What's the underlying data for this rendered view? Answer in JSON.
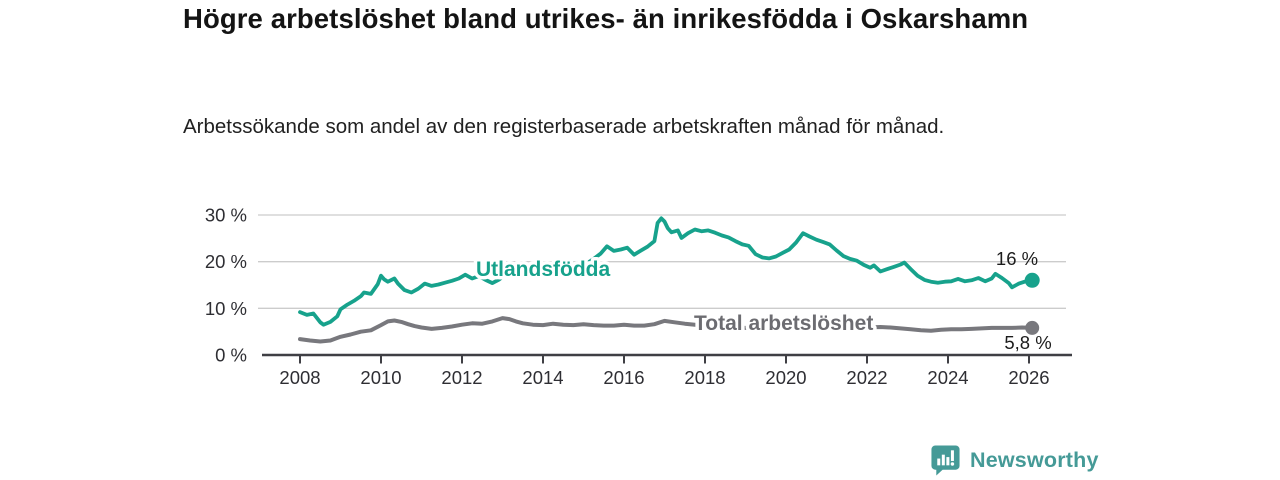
{
  "header": {
    "title": "Högre arbetslöshet bland utrikes- än inrikesfödda i Oskarshamn",
    "subtitle": "Arbetssökande som andel av den registerbaserade arbetskraften månad för månad."
  },
  "branding": {
    "logo_text": "Newsworthy",
    "logo_icon": "bar-chart-speech-bubble-icon",
    "color": "#459a97"
  },
  "colors": {
    "series_foreign_born": "#17a28c",
    "series_total": "#78787d",
    "gridline": "#cccccc",
    "axis": "#3f3f44",
    "text": "#141414"
  },
  "chart_data": {
    "type": "line",
    "title": "Högre arbetslöshet bland utrikes- än inrikesfödda i Oskarshamn",
    "subtitle": "Arbetssökande som andel av den registerbaserade arbetskraften månad för månad.",
    "xlabel": "",
    "ylabel": "",
    "x_axis": {
      "range": [
        2007.1,
        2027.1
      ],
      "tick_years": [
        2008,
        2010,
        2012,
        2014,
        2016,
        2018,
        2020,
        2022,
        2024,
        2026
      ],
      "tick_labels": [
        "2008",
        "2010",
        "2012",
        "2014",
        "2016",
        "2018",
        "2020",
        "2022",
        "2024",
        "2026"
      ]
    },
    "y_axis": {
      "range": [
        0,
        30
      ],
      "ticks": [
        0,
        10,
        20,
        30
      ],
      "tick_labels": [
        "0 %",
        "10 %",
        "20 %",
        "30 %"
      ],
      "unit": "%"
    },
    "grid": "horizontal-only",
    "legend_position": "inline-labels-on-lines",
    "series": [
      {
        "name": "Utlandsfödda",
        "color": "#17a28c",
        "stroke_width": 3.8,
        "end_label": "16 %",
        "end_value": 16,
        "points": [
          [
            2008.0,
            9.2
          ],
          [
            2008.17,
            8.6
          ],
          [
            2008.33,
            8.9
          ],
          [
            2008.5,
            7.0
          ],
          [
            2008.58,
            6.5
          ],
          [
            2008.75,
            7.1
          ],
          [
            2008.92,
            8.3
          ],
          [
            2009.0,
            9.8
          ],
          [
            2009.17,
            10.8
          ],
          [
            2009.33,
            11.6
          ],
          [
            2009.5,
            12.6
          ],
          [
            2009.58,
            13.4
          ],
          [
            2009.75,
            13.1
          ],
          [
            2009.92,
            15.2
          ],
          [
            2010.0,
            17.0
          ],
          [
            2010.08,
            16.2
          ],
          [
            2010.17,
            15.7
          ],
          [
            2010.33,
            16.4
          ],
          [
            2010.42,
            15.3
          ],
          [
            2010.58,
            13.9
          ],
          [
            2010.75,
            13.4
          ],
          [
            2010.92,
            14.2
          ],
          [
            2011.08,
            15.3
          ],
          [
            2011.25,
            14.8
          ],
          [
            2011.42,
            15.1
          ],
          [
            2011.58,
            15.5
          ],
          [
            2011.75,
            15.9
          ],
          [
            2011.92,
            16.4
          ],
          [
            2012.08,
            17.2
          ],
          [
            2012.25,
            16.4
          ],
          [
            2012.42,
            16.9
          ],
          [
            2012.58,
            16.1
          ],
          [
            2012.75,
            15.4
          ],
          [
            2012.92,
            16.2
          ],
          [
            2013.08,
            17.2
          ],
          [
            2013.25,
            17.6
          ],
          [
            2013.42,
            17.3
          ],
          [
            2013.58,
            17.0
          ],
          [
            2013.75,
            17.4
          ],
          [
            2013.92,
            17.8
          ],
          [
            2014.08,
            18.2
          ],
          [
            2014.25,
            18.6
          ],
          [
            2014.42,
            18.4
          ],
          [
            2014.58,
            18.1
          ],
          [
            2014.75,
            18.6
          ],
          [
            2014.92,
            19.0
          ],
          [
            2015.08,
            19.6
          ],
          [
            2015.25,
            20.6
          ],
          [
            2015.42,
            21.7
          ],
          [
            2015.58,
            23.3
          ],
          [
            2015.75,
            22.3
          ],
          [
            2015.92,
            22.6
          ],
          [
            2016.08,
            23.0
          ],
          [
            2016.25,
            21.5
          ],
          [
            2016.42,
            22.4
          ],
          [
            2016.58,
            23.2
          ],
          [
            2016.75,
            24.4
          ],
          [
            2016.83,
            28.3
          ],
          [
            2016.92,
            29.3
          ],
          [
            2017.0,
            28.6
          ],
          [
            2017.08,
            27.2
          ],
          [
            2017.17,
            26.3
          ],
          [
            2017.33,
            26.7
          ],
          [
            2017.42,
            25.1
          ],
          [
            2017.58,
            26.1
          ],
          [
            2017.75,
            26.9
          ],
          [
            2017.92,
            26.5
          ],
          [
            2018.08,
            26.7
          ],
          [
            2018.25,
            26.2
          ],
          [
            2018.42,
            25.6
          ],
          [
            2018.58,
            25.2
          ],
          [
            2018.75,
            24.4
          ],
          [
            2018.92,
            23.7
          ],
          [
            2019.08,
            23.4
          ],
          [
            2019.25,
            21.6
          ],
          [
            2019.42,
            20.9
          ],
          [
            2019.58,
            20.7
          ],
          [
            2019.75,
            21.1
          ],
          [
            2019.92,
            21.9
          ],
          [
            2020.08,
            22.6
          ],
          [
            2020.25,
            24.1
          ],
          [
            2020.42,
            26.1
          ],
          [
            2020.58,
            25.4
          ],
          [
            2020.75,
            24.7
          ],
          [
            2020.92,
            24.2
          ],
          [
            2021.08,
            23.7
          ],
          [
            2021.25,
            22.4
          ],
          [
            2021.42,
            21.2
          ],
          [
            2021.58,
            20.6
          ],
          [
            2021.75,
            20.2
          ],
          [
            2021.92,
            19.3
          ],
          [
            2022.08,
            18.7
          ],
          [
            2022.17,
            19.2
          ],
          [
            2022.33,
            17.9
          ],
          [
            2022.5,
            18.4
          ],
          [
            2022.67,
            18.9
          ],
          [
            2022.83,
            19.4
          ],
          [
            2022.92,
            19.8
          ],
          [
            2023.08,
            18.4
          ],
          [
            2023.25,
            17.0
          ],
          [
            2023.42,
            16.1
          ],
          [
            2023.58,
            15.7
          ],
          [
            2023.75,
            15.5
          ],
          [
            2023.92,
            15.7
          ],
          [
            2024.08,
            15.8
          ],
          [
            2024.25,
            16.3
          ],
          [
            2024.42,
            15.8
          ],
          [
            2024.58,
            16.0
          ],
          [
            2024.75,
            16.5
          ],
          [
            2024.92,
            15.8
          ],
          [
            2025.08,
            16.4
          ],
          [
            2025.17,
            17.4
          ],
          [
            2025.33,
            16.5
          ],
          [
            2025.5,
            15.4
          ],
          [
            2025.58,
            14.5
          ],
          [
            2025.75,
            15.3
          ],
          [
            2025.92,
            15.8
          ],
          [
            2026.08,
            16.0
          ]
        ]
      },
      {
        "name": "Total arbetslöshet",
        "color": "#78787d",
        "stroke_width": 4.0,
        "end_label": "5,8 %",
        "end_value": 5.8,
        "points": [
          [
            2008.0,
            3.4
          ],
          [
            2008.25,
            3.1
          ],
          [
            2008.5,
            2.9
          ],
          [
            2008.75,
            3.1
          ],
          [
            2009.0,
            3.9
          ],
          [
            2009.25,
            4.4
          ],
          [
            2009.5,
            5.0
          ],
          [
            2009.75,
            5.3
          ],
          [
            2010.0,
            6.4
          ],
          [
            2010.17,
            7.2
          ],
          [
            2010.33,
            7.4
          ],
          [
            2010.5,
            7.1
          ],
          [
            2010.67,
            6.6
          ],
          [
            2010.83,
            6.2
          ],
          [
            2011.0,
            5.9
          ],
          [
            2011.25,
            5.6
          ],
          [
            2011.5,
            5.8
          ],
          [
            2011.75,
            6.1
          ],
          [
            2012.0,
            6.5
          ],
          [
            2012.25,
            6.8
          ],
          [
            2012.5,
            6.7
          ],
          [
            2012.75,
            7.2
          ],
          [
            2013.0,
            7.9
          ],
          [
            2013.17,
            7.7
          ],
          [
            2013.33,
            7.2
          ],
          [
            2013.5,
            6.8
          ],
          [
            2013.75,
            6.5
          ],
          [
            2014.0,
            6.4
          ],
          [
            2014.25,
            6.7
          ],
          [
            2014.5,
            6.5
          ],
          [
            2014.75,
            6.4
          ],
          [
            2015.0,
            6.6
          ],
          [
            2015.25,
            6.4
          ],
          [
            2015.5,
            6.3
          ],
          [
            2015.75,
            6.3
          ],
          [
            2016.0,
            6.5
          ],
          [
            2016.25,
            6.3
          ],
          [
            2016.5,
            6.3
          ],
          [
            2016.75,
            6.6
          ],
          [
            2017.0,
            7.3
          ],
          [
            2017.25,
            7.0
          ],
          [
            2017.5,
            6.7
          ],
          [
            2017.75,
            6.5
          ],
          [
            2018.0,
            6.3
          ],
          [
            2018.5,
            6.0
          ],
          [
            2019.0,
            5.8
          ],
          [
            2019.5,
            5.9
          ],
          [
            2020.0,
            6.2
          ],
          [
            2020.33,
            7.0
          ],
          [
            2020.67,
            6.8
          ],
          [
            2021.0,
            6.5
          ],
          [
            2021.33,
            6.2
          ],
          [
            2021.67,
            6.0
          ],
          [
            2022.0,
            5.9
          ],
          [
            2022.33,
            6.0
          ],
          [
            2022.58,
            5.9
          ],
          [
            2022.83,
            5.7
          ],
          [
            2023.08,
            5.5
          ],
          [
            2023.33,
            5.3
          ],
          [
            2023.58,
            5.2
          ],
          [
            2023.83,
            5.4
          ],
          [
            2024.08,
            5.5
          ],
          [
            2024.33,
            5.5
          ],
          [
            2024.58,
            5.6
          ],
          [
            2024.83,
            5.7
          ],
          [
            2025.08,
            5.8
          ],
          [
            2025.33,
            5.8
          ],
          [
            2025.58,
            5.8
          ],
          [
            2025.83,
            5.9
          ],
          [
            2026.08,
            5.8
          ]
        ]
      }
    ]
  }
}
